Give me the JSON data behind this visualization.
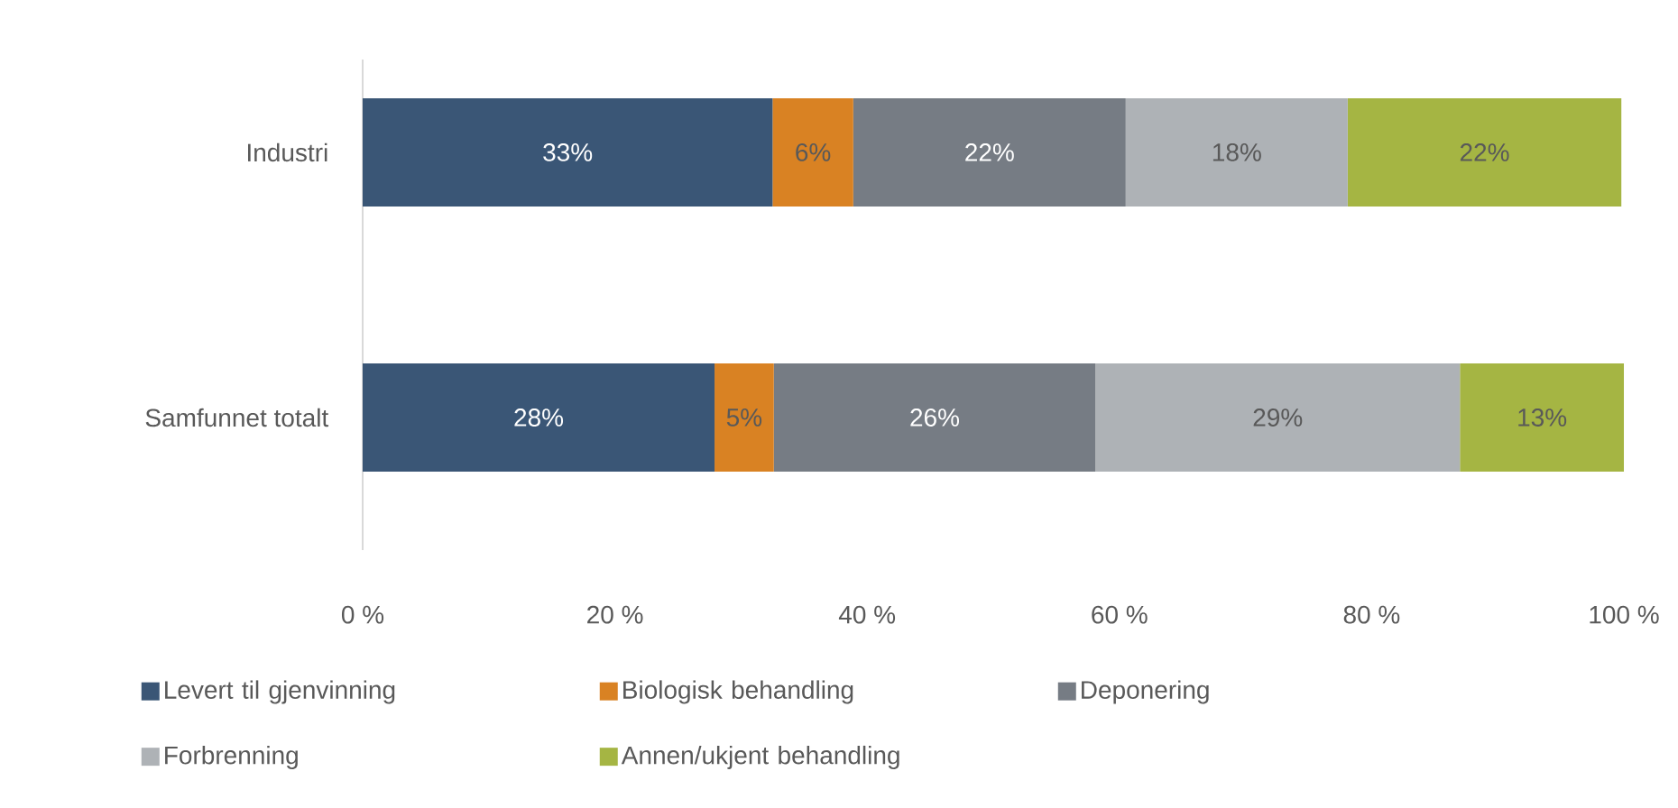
{
  "chart_data": {
    "type": "bar",
    "orientation": "horizontal",
    "stacked": true,
    "categories": [
      "Industri",
      "Samfunnet totalt"
    ],
    "series": [
      {
        "name": "Levert til gjenvinning",
        "color": "#3a5676",
        "values": [
          32.5,
          27.9
        ],
        "value_labels": [
          "33%",
          "28%"
        ]
      },
      {
        "name": "Biologisk behandling",
        "color": "#d98223",
        "values": [
          6.4,
          4.7
        ],
        "value_labels": [
          "6%",
          "5%"
        ]
      },
      {
        "name": "Deponering",
        "color": "#767c84",
        "values": [
          21.6,
          25.5
        ],
        "value_labels": [
          "22%",
          "26%"
        ]
      },
      {
        "name": "Forbrenning",
        "color": "#aeb2b6",
        "values": [
          17.6,
          28.9
        ],
        "value_labels": [
          "18%",
          "29%"
        ]
      },
      {
        "name": "Annen/ukjent behandling",
        "color": "#a5b543",
        "values": [
          21.7,
          13.0
        ],
        "value_labels": [
          "22%",
          "13%"
        ]
      }
    ],
    "xlim": [
      0,
      100
    ],
    "xticks": [
      {
        "value": 0,
        "label": "0 %"
      },
      {
        "value": 20,
        "label": "20 %"
      },
      {
        "value": 40,
        "label": "40 %"
      },
      {
        "value": 60,
        "label": "60 %"
      },
      {
        "value": 80,
        "label": "80 %"
      },
      {
        "value": 100,
        "label": "100 %"
      }
    ],
    "legend": "bottom"
  }
}
